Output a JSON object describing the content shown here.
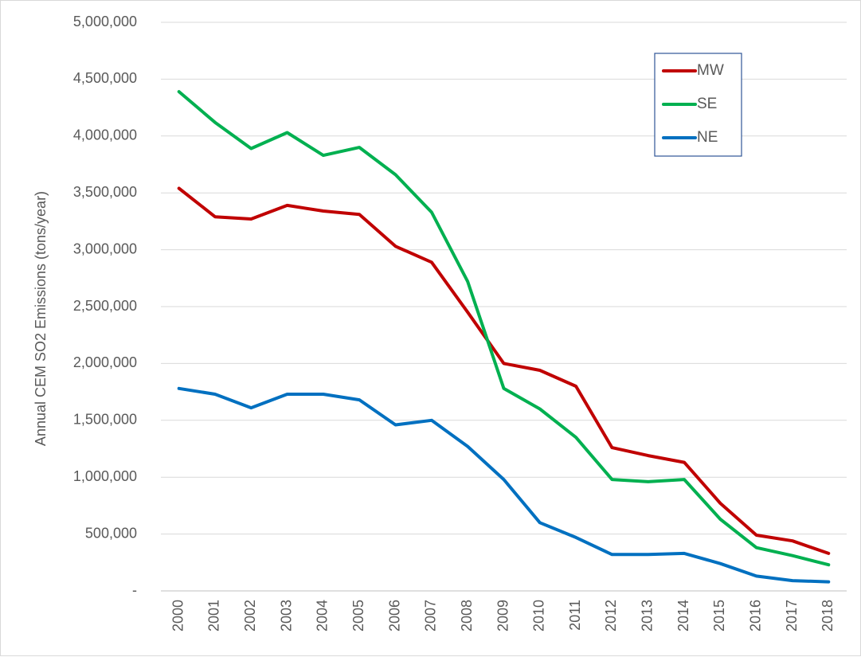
{
  "chart_data": {
    "type": "line",
    "title": "",
    "xlabel": "",
    "ylabel": "Annual CEM SO2 Emissions (tons/year)",
    "ylim": [
      0,
      5000000
    ],
    "yticks": [
      0,
      500000,
      1000000,
      1500000,
      2000000,
      2500000,
      3000000,
      3500000,
      4000000,
      4500000,
      5000000
    ],
    "ytick_labels": [
      "-",
      "500,000",
      "1,000,000",
      "1,500,000",
      "2,000,000",
      "2,500,000",
      "3,000,000",
      "3,500,000",
      "4,000,000",
      "4,500,000",
      "5,000,000"
    ],
    "categories": [
      "2000",
      "2001",
      "2002",
      "2003",
      "2004",
      "2005",
      "2006",
      "2007",
      "2008",
      "2009",
      "2010",
      "2011",
      "2012",
      "2013",
      "2014",
      "2015",
      "2016",
      "2017",
      "2018"
    ],
    "grid": true,
    "legend_position": "top-right",
    "series": [
      {
        "name": "MW",
        "color": "#c00000",
        "values": [
          3540000,
          3290000,
          3270000,
          3390000,
          3340000,
          3310000,
          3030000,
          2890000,
          2450000,
          2000000,
          1940000,
          1800000,
          1260000,
          1190000,
          1130000,
          770000,
          490000,
          440000,
          330000
        ]
      },
      {
        "name": "SE",
        "color": "#00b050",
        "values": [
          4390000,
          4120000,
          3890000,
          4030000,
          3830000,
          3900000,
          3660000,
          3330000,
          2720000,
          1780000,
          1600000,
          1350000,
          980000,
          960000,
          980000,
          630000,
          380000,
          310000,
          230000
        ]
      },
      {
        "name": "NE",
        "color": "#0070c0",
        "values": [
          1780000,
          1730000,
          1610000,
          1730000,
          1730000,
          1680000,
          1460000,
          1500000,
          1270000,
          980000,
          600000,
          470000,
          320000,
          320000,
          330000,
          240000,
          130000,
          90000,
          80000
        ]
      }
    ]
  }
}
